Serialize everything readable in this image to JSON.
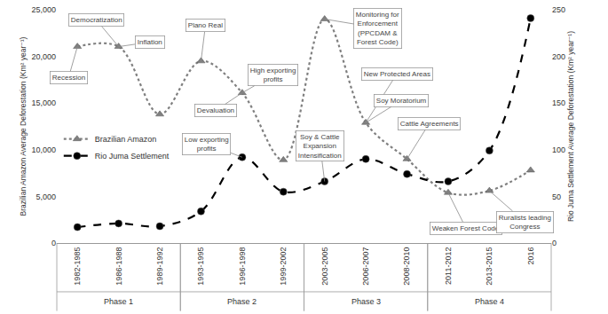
{
  "chart_data": {
    "type": "line",
    "categories": [
      "1982-1985",
      "1986-1988",
      "1989-1992",
      "1993-1995",
      "1996-1998",
      "1999-2002",
      "2003-2005",
      "2006-2007",
      "2008-2010",
      "2011-2012",
      "2013-2015",
      "2016"
    ],
    "series": [
      {
        "name": "Brazilian Amazon",
        "color": "#808080",
        "marker": "triangle-up",
        "line_style": "dot",
        "values": [
          21050,
          21050,
          13800,
          19500,
          16100,
          8900,
          24000,
          12900,
          9000,
          5400,
          5600,
          7800
        ]
      },
      {
        "name": "Rio Juma Settlement",
        "color": "#000000",
        "marker": "circle",
        "line_style": "dash",
        "axis": "y2",
        "values": [
          17,
          21,
          18,
          34,
          92,
          55,
          66,
          90,
          74,
          66,
          99,
          241
        ]
      }
    ],
    "y_label": "Brazilian Amazon Average Deforestation (Km² year⁻¹)",
    "y2_label": "Rio Juma Settlement Average Deforestation (Km² year⁻¹)",
    "ylim": [
      0,
      25000
    ],
    "yticks": [
      0,
      {
        "value": 5000,
        "label": "5,000"
      },
      {
        "value": 10000,
        "label": "10,000"
      },
      {
        "value": 15000,
        "label": "15,000"
      },
      {
        "value": 20000,
        "label": "20,000"
      },
      {
        "value": 25000,
        "label": "25,000"
      }
    ],
    "y2lim": [
      0,
      250
    ],
    "y2ticks": [
      0,
      50,
      100,
      150,
      200,
      250
    ],
    "grid": false,
    "legend": "left",
    "annotations": [
      {
        "text": "Recession",
        "category": "1982-1985",
        "value": 21050,
        "axis": "y"
      },
      {
        "text": "Democratization",
        "category": "1986-1988",
        "value": 21050,
        "axis": "y"
      },
      {
        "text": "Inflation",
        "category": "1986-1988",
        "value": 21050,
        "axis": "y"
      },
      {
        "text": "Plano Real",
        "category": "1993-1995",
        "value": 19500,
        "axis": "y"
      },
      {
        "text": "Devaluation",
        "category": "1996-1998",
        "value": 16100,
        "axis": "y"
      },
      {
        "text": "High exporting\nprofits",
        "category": "1996-1998",
        "value": 16100,
        "axis": "y"
      },
      {
        "text": "Low exporting\nprofits",
        "category": "1996-1998",
        "value": 92,
        "axis": "y2"
      },
      {
        "text": "Soy & Cattle\nExpansion\nIntensification",
        "category": "2003-2005",
        "value": 66,
        "axis": "y2"
      },
      {
        "text": "Monitoring for\nEnforcement\n(PPCDAM &\nForest Code)",
        "category": "2003-2005",
        "value": 24000,
        "axis": "y"
      },
      {
        "text": "New Protected Areas",
        "category": "2006-2007",
        "value": 12900,
        "axis": "y"
      },
      {
        "text": "Soy Moratorium",
        "category": "2006-2007",
        "value": 12900,
        "axis": "y"
      },
      {
        "text": "Cattle Agreements",
        "category": "2008-2010",
        "value": 9000,
        "axis": "y"
      },
      {
        "text": "Weaken Forest Code",
        "category": "2011-2012",
        "value": 5400,
        "axis": "y"
      },
      {
        "text": "Ruralists leading\nCongress",
        "category": "2013-2015",
        "value": 5600,
        "axis": "y"
      }
    ],
    "phases": [
      {
        "label": "Phase 1",
        "start": "1982-1985",
        "end": "1989-1992"
      },
      {
        "label": "Phase 2",
        "start": "1993-1995",
        "end": "1999-2002"
      },
      {
        "label": "Phase 3",
        "start": "2003-2005",
        "end": "2008-2010"
      },
      {
        "label": "Phase 4",
        "start": "2011-2012",
        "end": "2016"
      }
    ]
  }
}
